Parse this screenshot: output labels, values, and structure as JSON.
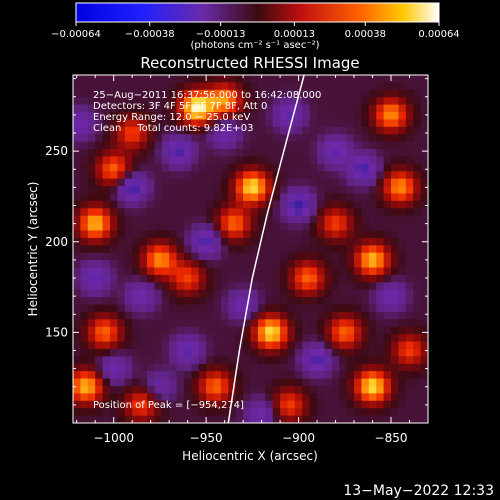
{
  "colorbar": {
    "ticks": [
      "-0.00064",
      "-0.00038",
      "-0.00013",
      "0.00013",
      "0.00038",
      "0.00064"
    ],
    "units_label": "(photons cm⁻² s⁻¹ asec⁻²)",
    "range": [
      -0.00064,
      0.00064
    ]
  },
  "chart_data": {
    "type": "heatmap",
    "title": "Reconstructed RHESSI Image",
    "xlabel": "Heliocentric X (arcsec)",
    "ylabel": "Heliocentric Y (arcsec)",
    "xlim": [
      -1022,
      -830
    ],
    "ylim": [
      100,
      292
    ],
    "x_ticks": [
      -1000,
      -950,
      -900,
      -850
    ],
    "y_ticks": [
      150,
      200,
      250
    ],
    "x_tick_labels": [
      "−1000",
      "−950",
      "−900",
      "−850"
    ],
    "y_tick_labels": [
      "150",
      "200",
      "250"
    ],
    "annotations": [
      "25−Aug−2011 16:37:56.000 to 16:42:08.000",
      "Detectors: 3F 4F 5F 6F 7F 8F, Att 0",
      "Energy Range: 12.0 − 25.0 keV",
      "Clean     Total counts: 9.82E+03"
    ],
    "peak_label": "Position of Peak = [−954,274]",
    "peak_position": [
      -954,
      274
    ],
    "limb_curve": [
      [
        -938,
        100
      ],
      [
        -932,
        140
      ],
      [
        -925,
        180
      ],
      [
        -917,
        215
      ],
      [
        -908,
        250
      ],
      [
        -897,
        292
      ]
    ],
    "hot_spots": [
      {
        "x": -1010,
        "y": 210,
        "level": 0.8
      },
      {
        "x": -1000,
        "y": 240,
        "level": 0.6
      },
      {
        "x": -990,
        "y": 260,
        "level": 0.5
      },
      {
        "x": -955,
        "y": 274,
        "level": 1.0
      },
      {
        "x": -940,
        "y": 278,
        "level": 0.7
      },
      {
        "x": -925,
        "y": 230,
        "level": 0.9
      },
      {
        "x": -935,
        "y": 210,
        "level": 0.6
      },
      {
        "x": -975,
        "y": 190,
        "level": 0.7
      },
      {
        "x": -960,
        "y": 180,
        "level": 0.5
      },
      {
        "x": -1005,
        "y": 150,
        "level": 0.6
      },
      {
        "x": -1015,
        "y": 120,
        "level": 0.8
      },
      {
        "x": -985,
        "y": 110,
        "level": 0.5
      },
      {
        "x": -945,
        "y": 120,
        "level": 0.6
      },
      {
        "x": -915,
        "y": 150,
        "level": 0.9
      },
      {
        "x": -905,
        "y": 110,
        "level": 0.5
      },
      {
        "x": -895,
        "y": 180,
        "level": 0.6
      },
      {
        "x": -880,
        "y": 210,
        "level": 0.5
      },
      {
        "x": -860,
        "y": 190,
        "level": 0.8
      },
      {
        "x": -845,
        "y": 230,
        "level": 0.7
      },
      {
        "x": -850,
        "y": 270,
        "level": 0.7
      },
      {
        "x": -875,
        "y": 150,
        "level": 0.6
      },
      {
        "x": -840,
        "y": 140,
        "level": 0.5
      },
      {
        "x": -860,
        "y": 120,
        "level": 0.9
      }
    ],
    "cold_spots": [
      {
        "x": -990,
        "y": 230,
        "level": 0.9
      },
      {
        "x": -965,
        "y": 250,
        "level": 0.8
      },
      {
        "x": -940,
        "y": 260,
        "level": 0.6
      },
      {
        "x": -1010,
        "y": 180,
        "level": 0.7
      },
      {
        "x": -985,
        "y": 170,
        "level": 0.6
      },
      {
        "x": -950,
        "y": 200,
        "level": 0.8
      },
      {
        "x": -905,
        "y": 270,
        "level": 0.7
      },
      {
        "x": -900,
        "y": 220,
        "level": 0.9
      },
      {
        "x": -880,
        "y": 250,
        "level": 0.7
      },
      {
        "x": -865,
        "y": 240,
        "level": 0.8
      },
      {
        "x": -960,
        "y": 140,
        "level": 0.7
      },
      {
        "x": -930,
        "y": 165,
        "level": 0.6
      },
      {
        "x": -1000,
        "y": 130,
        "level": 0.6
      },
      {
        "x": -890,
        "y": 135,
        "level": 0.8
      },
      {
        "x": -850,
        "y": 170,
        "level": 0.6
      },
      {
        "x": -975,
        "y": 120,
        "level": 0.5
      },
      {
        "x": -920,
        "y": 105,
        "level": 0.6
      },
      {
        "x": -1018,
        "y": 265,
        "level": 0.6
      }
    ]
  },
  "footer": {
    "date_stamp": "13−May−2022 12:33"
  }
}
